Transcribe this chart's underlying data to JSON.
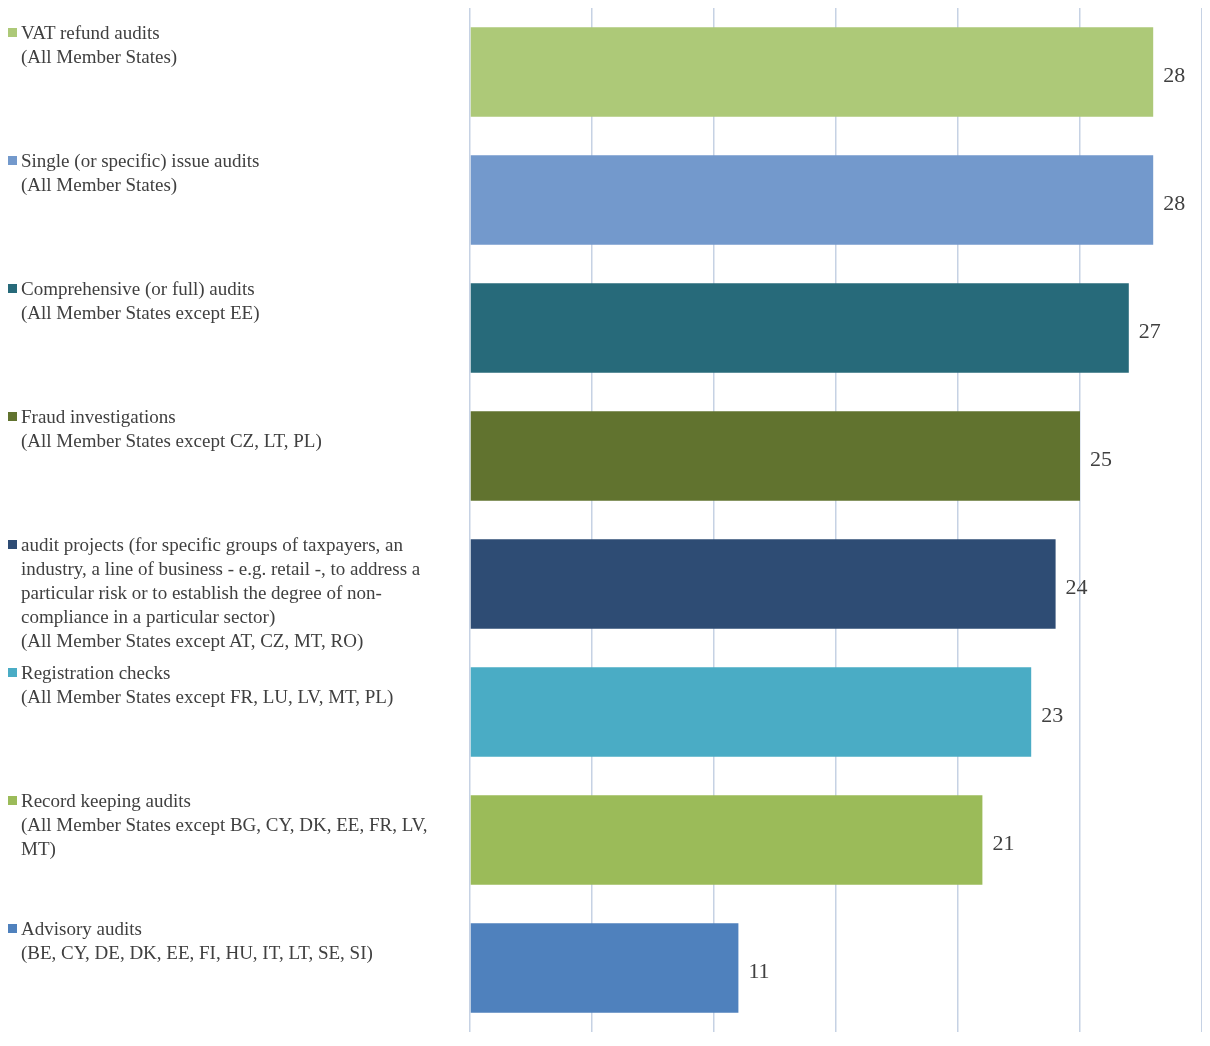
{
  "chart_data": {
    "type": "bar",
    "orientation": "horizontal",
    "categories": [
      "VAT refund audits\n(All Member States)",
      "Single (or specific) issue audits\n(All Member States)",
      "Comprehensive (or full) audits\n(All Member States except EE)",
      "Fraud investigations\n(All Member States except CZ, LT, PL)",
      "audit projects (for specific groups of taxpayers, an industry, a line of business - e.g. retail -, to address a particular risk or to establish the degree of non-compliance in a particular sector)\n(All Member States except AT, CZ, MT, RO)",
      "Registration checks\n(All Member States except  FR, LU, LV, MT, PL)",
      "Record keeping audits\n(All Member States except BG, CY, DK, EE, FR, LV, MT)",
      "Advisory audits\n(BE, CY, DE, DK, EE, FI, HU, IT, LT, SE, SI)"
    ],
    "values": [
      28,
      28,
      27,
      25,
      24,
      23,
      21,
      11
    ],
    "colors": [
      "#adc978",
      "#7399cc",
      "#276a7a",
      "#61732f",
      "#2e4c74",
      "#4aacc5",
      "#9bbb59",
      "#4f81bd"
    ],
    "xlim": [
      0,
      30
    ],
    "xticks": [
      {
        "value": 0,
        "label": null
      },
      {
        "value": 5,
        "label": null
      },
      {
        "value": 10,
        "label": null
      },
      {
        "value": 15,
        "label": null
      },
      {
        "value": 20,
        "label": null
      },
      {
        "value": 25,
        "label": null
      },
      {
        "value": 30,
        "label": null
      }
    ],
    "grid": "x",
    "tick_labels": "y",
    "data_labels": true,
    "legend": false
  }
}
